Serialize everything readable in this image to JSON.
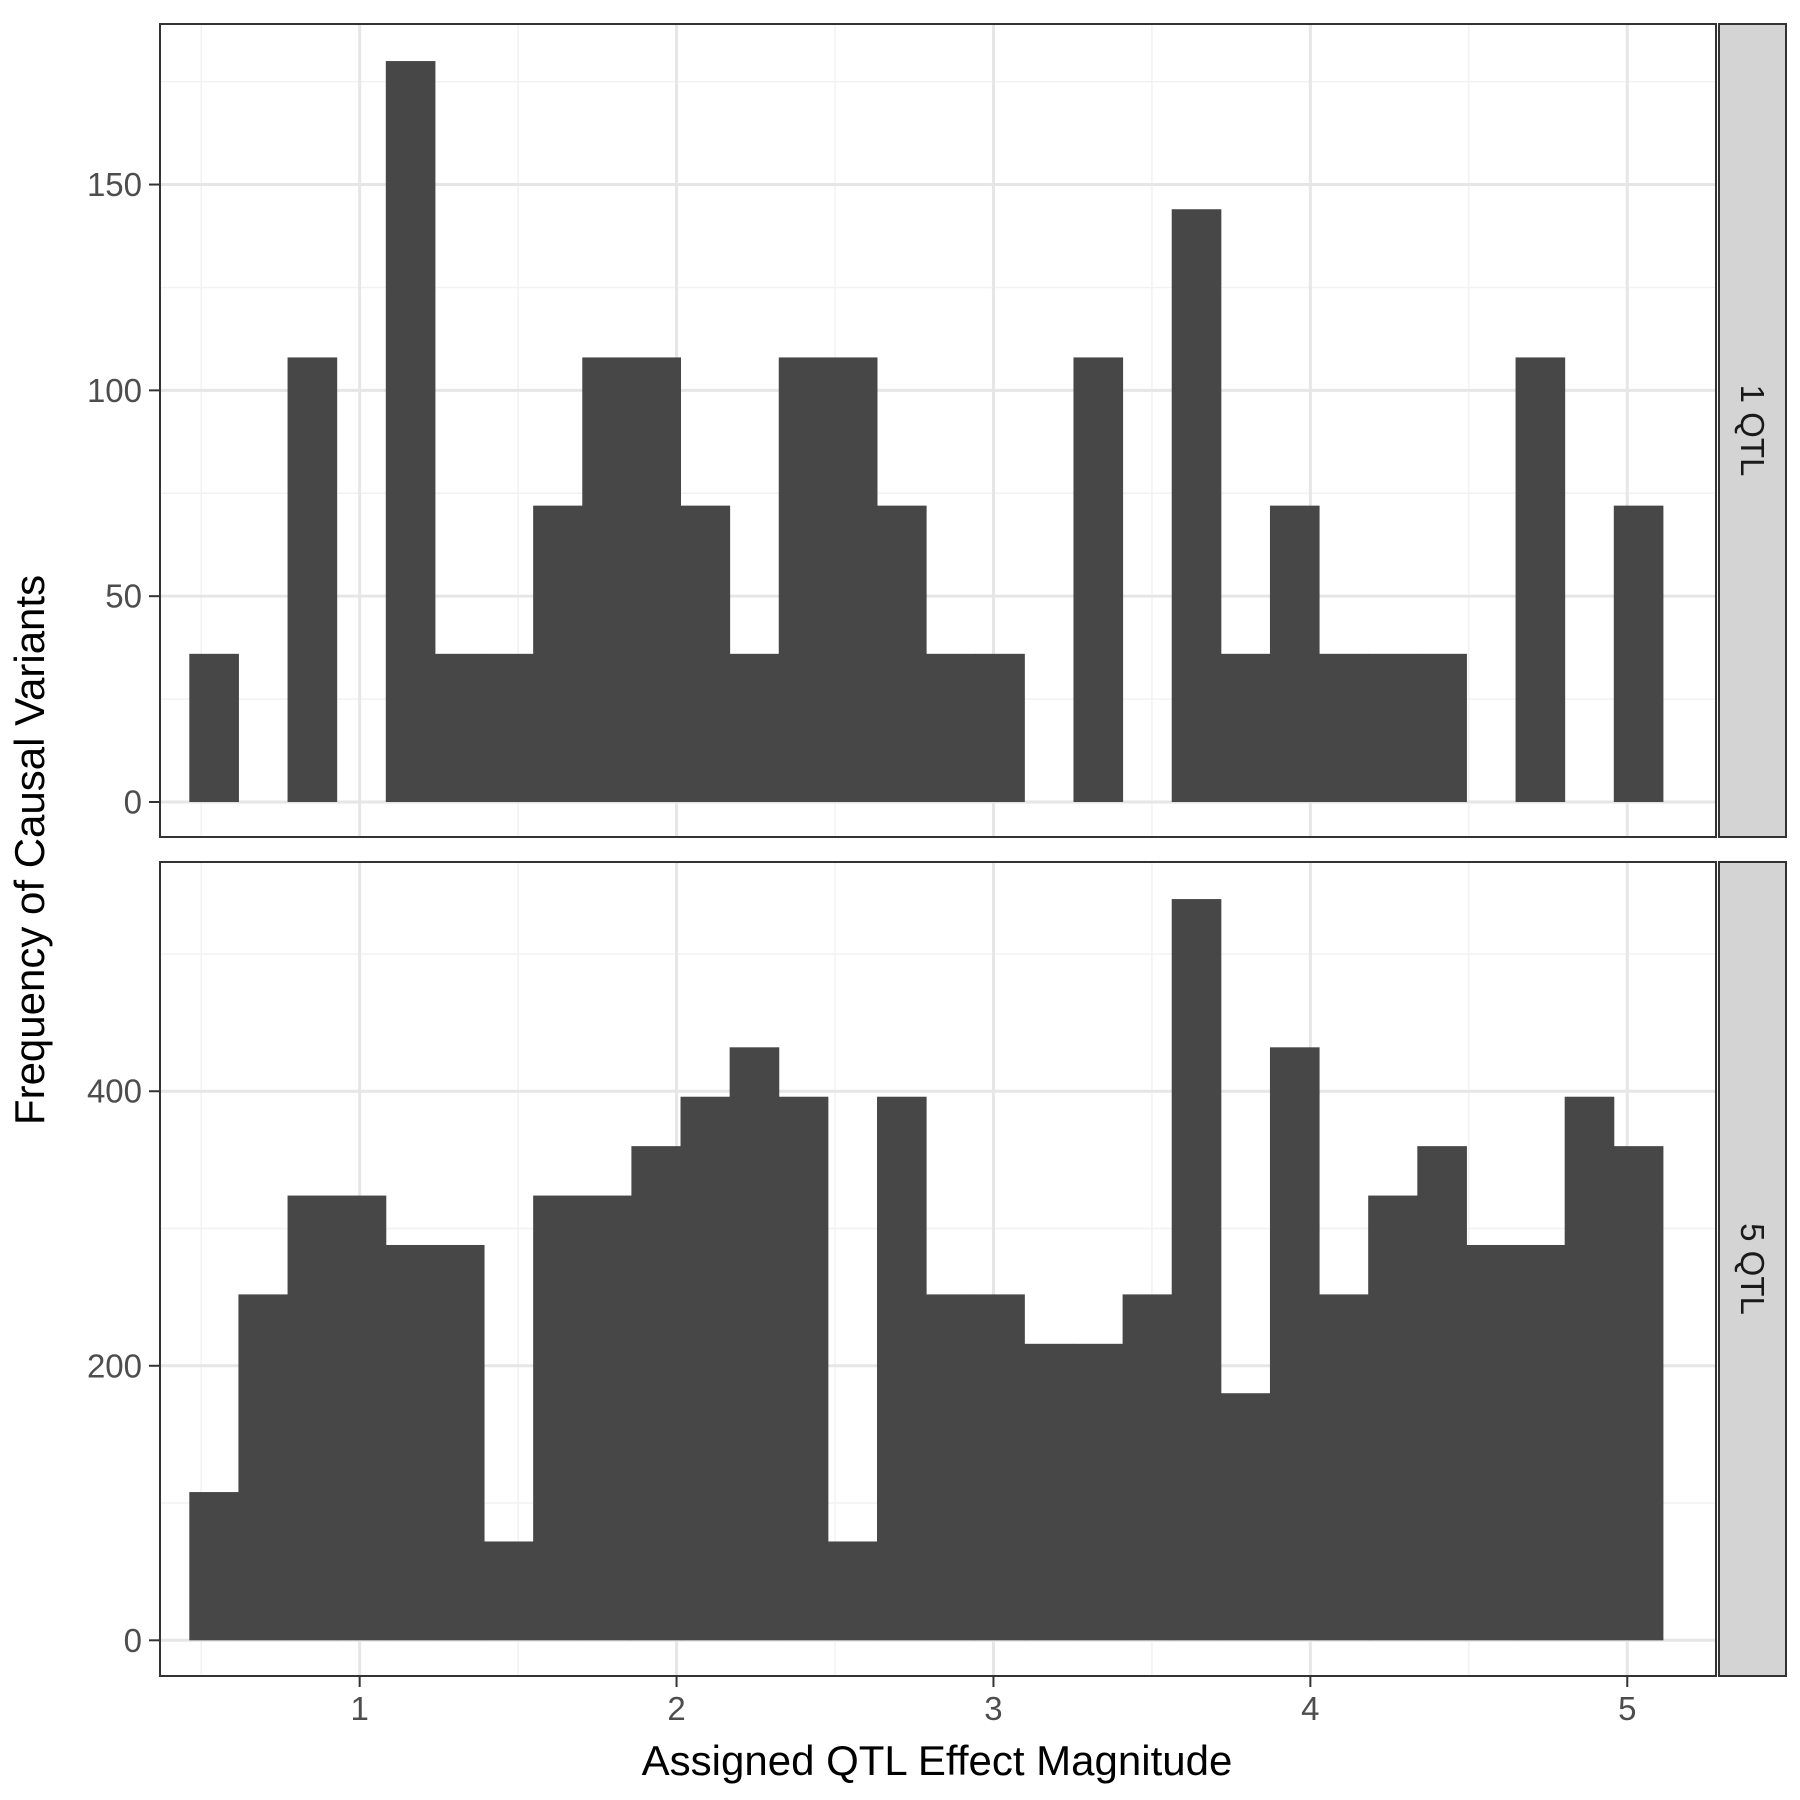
{
  "figure": {
    "xlabel": "Assigned QTL Effect Magnitude",
    "ylabel": "Frequency of Causal Variants"
  },
  "colors": {
    "bar": "#474747",
    "panel_border": "#333333",
    "grid_major": "#e6e6e6",
    "grid_minor": "#f2f2f2",
    "strip_fill": "#d4d4d4",
    "tick_label": "#4d4d4d",
    "axis_title": "#000000"
  },
  "chart_data": [
    {
      "type": "bar",
      "facet_label": "1 QTL",
      "bin_width": 0.155,
      "bin_centers": [
        0.54,
        0.695,
        0.85,
        1.005,
        1.16,
        1.315,
        1.47,
        1.625,
        1.78,
        1.935,
        2.09,
        2.245,
        2.4,
        2.555,
        2.71,
        2.865,
        3.02,
        3.175,
        3.33,
        3.485,
        3.64,
        3.795,
        3.95,
        4.105,
        4.26,
        4.415,
        4.57,
        4.725,
        4.88,
        5.035
      ],
      "values": [
        36,
        0,
        108,
        0,
        180,
        36,
        36,
        72,
        108,
        108,
        72,
        36,
        108,
        108,
        72,
        36,
        36,
        0,
        108,
        0,
        144,
        36,
        72,
        36,
        36,
        36,
        0,
        108,
        0,
        72
      ],
      "xlim": [
        0.37,
        5.28
      ],
      "ylim": [
        -8.5,
        189
      ],
      "x_ticks": [
        1,
        2,
        3,
        4,
        5
      ],
      "y_ticks": [
        0,
        50,
        100,
        150
      ],
      "grid": true
    },
    {
      "type": "bar",
      "facet_label": "5 QTL",
      "bin_width": 0.155,
      "bin_centers": [
        0.54,
        0.695,
        0.85,
        1.005,
        1.16,
        1.315,
        1.47,
        1.625,
        1.78,
        1.935,
        2.09,
        2.245,
        2.4,
        2.555,
        2.71,
        2.865,
        3.02,
        3.175,
        3.33,
        3.485,
        3.64,
        3.795,
        3.95,
        4.105,
        4.26,
        4.415,
        4.57,
        4.725,
        4.88,
        5.035
      ],
      "values": [
        108,
        252,
        324,
        324,
        288,
        288,
        72,
        324,
        324,
        360,
        396,
        432,
        396,
        72,
        396,
        252,
        252,
        216,
        216,
        252,
        540,
        180,
        432,
        252,
        324,
        360,
        288,
        288,
        396,
        360
      ],
      "xlim": [
        0.37,
        5.28
      ],
      "ylim": [
        -26,
        567
      ],
      "x_ticks": [
        1,
        2,
        3,
        4,
        5
      ],
      "y_ticks": [
        0,
        200,
        400
      ],
      "grid": true
    }
  ]
}
